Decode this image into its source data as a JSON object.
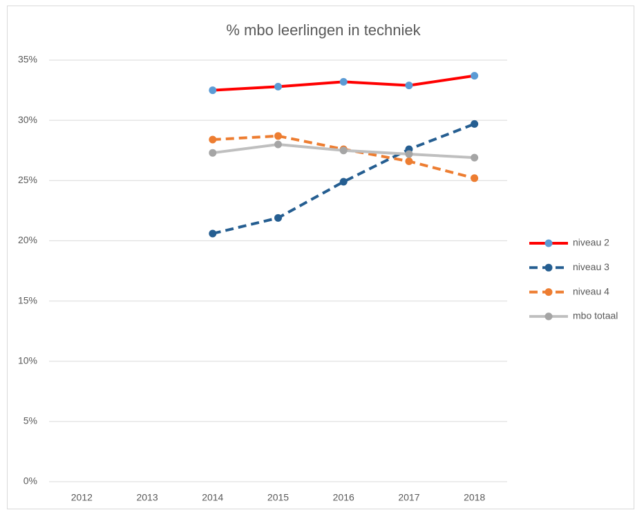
{
  "chart_data": {
    "type": "line",
    "title": "% mbo leerlingen in techniek",
    "categories": [
      "2012",
      "2013",
      "2014",
      "2015",
      "2016",
      "2017",
      "2018"
    ],
    "series": [
      {
        "name": "niveau 2",
        "color": "#ff0000",
        "marker_color": "#5b9bd5",
        "dashed": false,
        "values": [
          null,
          null,
          32.5,
          32.8,
          33.2,
          32.9,
          33.7
        ]
      },
      {
        "name": "niveau 3",
        "color": "#255e91",
        "marker_color": "#255e91",
        "dashed": true,
        "values": [
          null,
          null,
          20.6,
          21.9,
          24.9,
          27.6,
          29.7
        ]
      },
      {
        "name": "niveau 4",
        "color": "#ed7d31",
        "marker_color": "#ed7d31",
        "dashed": true,
        "values": [
          null,
          null,
          28.4,
          28.7,
          27.6,
          26.6,
          25.2
        ]
      },
      {
        "name": "mbo totaal",
        "color": "#bfbfbf",
        "marker_color": "#a5a5a5",
        "dashed": false,
        "values": [
          null,
          null,
          27.3,
          28.0,
          27.5,
          27.2,
          26.9
        ]
      }
    ],
    "ylim": [
      0,
      35
    ],
    "yticks": [
      {
        "value": 0,
        "label": "0%"
      },
      {
        "value": 5,
        "label": "5%"
      },
      {
        "value": 10,
        "label": "10%"
      },
      {
        "value": 15,
        "label": "15%"
      },
      {
        "value": 20,
        "label": "20%"
      },
      {
        "value": 25,
        "label": "25%"
      },
      {
        "value": 30,
        "label": "30%"
      },
      {
        "value": 35,
        "label": "35%"
      }
    ],
    "grid": true,
    "legend": "right"
  }
}
